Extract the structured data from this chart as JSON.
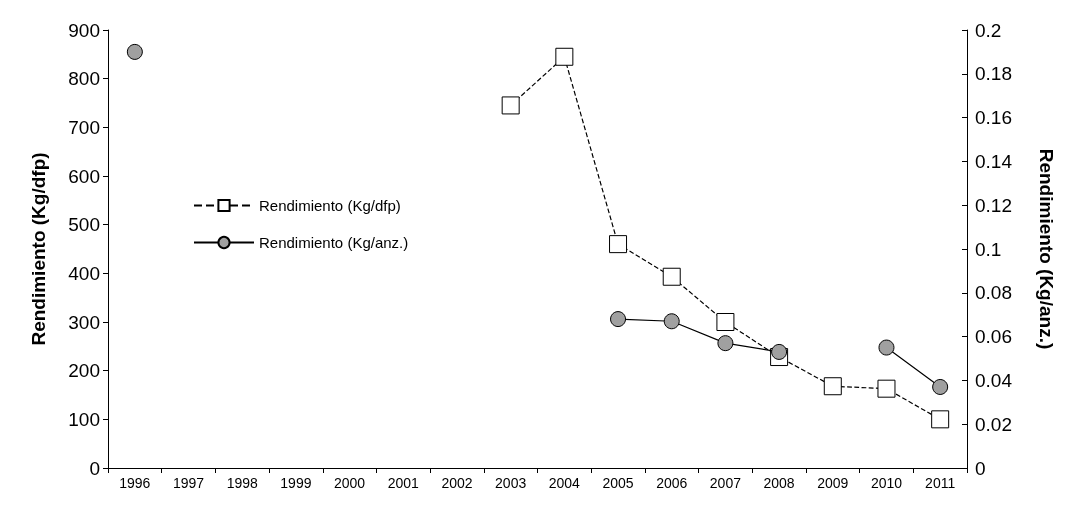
{
  "chart_data": {
    "type": "line",
    "ylabel": "Rendimiento (Kg/dfp)",
    "y2label": "Rendimiento (Kg/anz.)",
    "categories": [
      "1996",
      "1997",
      "1998",
      "1999",
      "2000",
      "2001",
      "2002",
      "2003",
      "2004",
      "2005",
      "2006",
      "2007",
      "2008",
      "2009",
      "2010",
      "2011"
    ],
    "series": [
      {
        "name": "Rendimiento (Kg/dfp)",
        "color": "#ffffff",
        "marker": "square",
        "line_style": "dashed",
        "values": [
          null,
          null,
          null,
          null,
          null,
          null,
          null,
          745,
          845,
          460,
          393,
          300,
          228,
          168,
          163,
          100
        ]
      },
      {
        "name": "Rendimiento (Kg/anz.)",
        "color": "#a0a0a0",
        "marker": "circle",
        "line_style": "solid",
        "axis": "y2",
        "values": [
          0.19,
          null,
          null,
          null,
          null,
          null,
          null,
          null,
          null,
          0.068,
          0.067,
          0.057,
          0.053,
          null,
          0.055,
          0.037
        ]
      }
    ],
    "ylim": [
      0,
      900
    ],
    "yticks": [
      0,
      100,
      200,
      300,
      400,
      500,
      600,
      700,
      800,
      900
    ],
    "y2lim": [
      0,
      0.2
    ],
    "y2ticks": [
      0,
      0.02,
      0.04,
      0.06,
      0.08,
      0.1,
      0.12,
      0.14,
      0.16,
      0.18,
      0.2
    ],
    "grid": false,
    "legend": "left"
  }
}
